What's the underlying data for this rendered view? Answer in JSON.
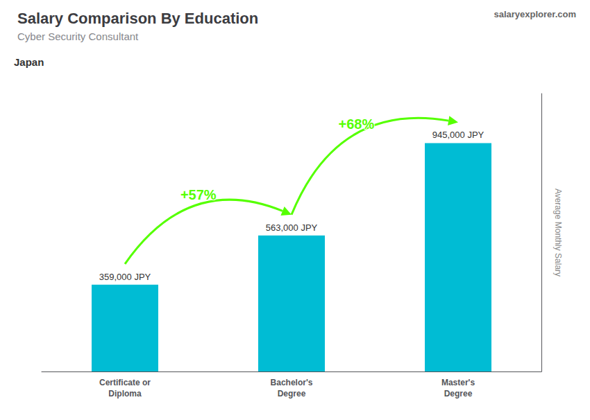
{
  "chart_data": {
    "type": "bar",
    "title": "Salary Comparison By Education",
    "subtitle": "Cyber Security Consultant",
    "ylabel": "Average Monthly Salary",
    "categories": [
      "Certificate or\nDiploma",
      "Bachelor's\nDegree",
      "Master's\nDegree"
    ],
    "values": [
      359000,
      563000,
      945000
    ],
    "value_labels": [
      "359,000 JPY",
      "563,000 JPY",
      "945,000 JPY"
    ],
    "data_labels": true,
    "color": "#00bcd4",
    "ylim": [
      0,
      1150000
    ],
    "grid": false,
    "tick_labels": "x",
    "annotations": [
      {
        "text": "Japan"
      },
      {
        "text": "salaryexplorer.com"
      },
      {
        "text": "+57%",
        "from": "Certificate or\nDiploma",
        "to": "Bachelor's\nDegree",
        "color": "#55ff00"
      },
      {
        "text": "+68%",
        "from": "Bachelor's\nDegree",
        "to": "Master's\nDegree",
        "color": "#55ff00"
      }
    ]
  }
}
